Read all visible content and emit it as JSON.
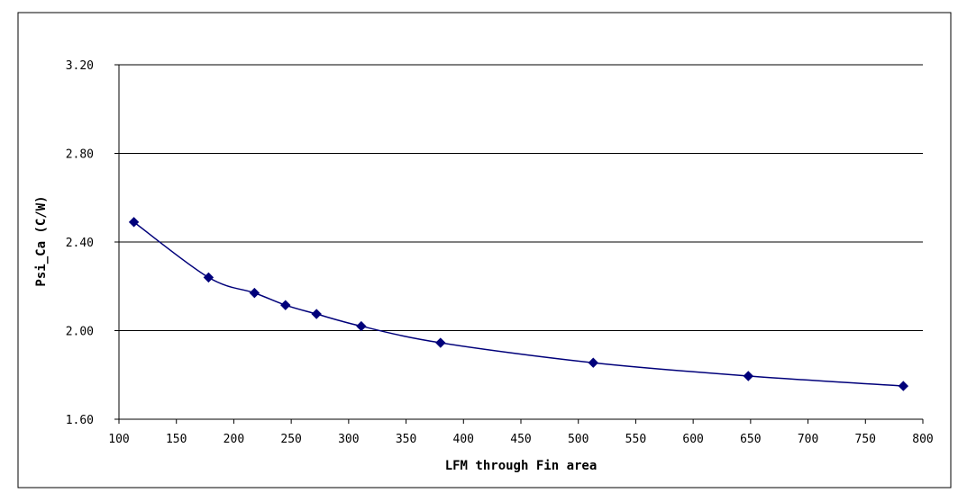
{
  "chart_data": {
    "type": "line",
    "title": "",
    "xlabel": "LFM through Fin area",
    "ylabel": "Psi_Ca (C/W)",
    "xlim": [
      100,
      800
    ],
    "ylim": [
      1.6,
      3.2
    ],
    "x_ticks": [
      "100",
      "150",
      "200",
      "250",
      "300",
      "350",
      "400",
      "450",
      "500",
      "550",
      "600",
      "650",
      "700",
      "750",
      "800"
    ],
    "y_ticks": [
      "1.60",
      "2.00",
      "2.40",
      "2.80",
      "3.20"
    ],
    "grid": "horizontal",
    "legend": "none",
    "series": [
      {
        "color": "#00007a",
        "marker": "diamond",
        "smooth": true,
        "x": [
          113,
          178,
          218,
          245,
          272,
          311,
          380,
          513,
          648,
          783
        ],
        "y": [
          2.49,
          2.24,
          2.17,
          2.115,
          2.075,
          2.02,
          1.945,
          1.855,
          1.795,
          1.75
        ]
      }
    ]
  }
}
